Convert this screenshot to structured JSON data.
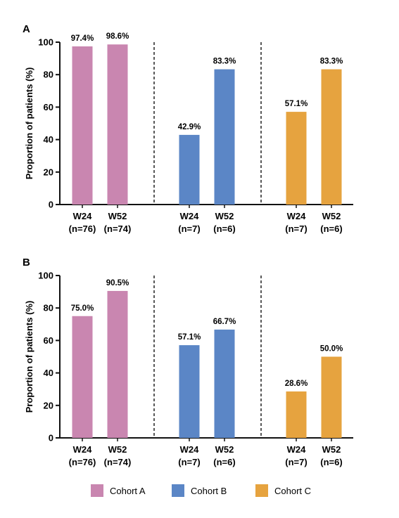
{
  "chart_data": [
    {
      "type": "bar",
      "panel": "A",
      "ylabel": "Proportion of patients (%)",
      "ylim": [
        0,
        100
      ],
      "yticks": [
        0,
        20,
        40,
        60,
        80,
        100
      ],
      "categories": [
        "W24",
        "W52",
        "W24",
        "W52",
        "W24",
        "W52"
      ],
      "category_n": [
        "(n=76)",
        "(n=74)",
        "(n=7)",
        "(n=6)",
        "(n=7)",
        "(n=6)"
      ],
      "groups": [
        "Cohort A",
        "Cohort A",
        "Cohort B",
        "Cohort B",
        "Cohort C",
        "Cohort C"
      ],
      "values": [
        97.4,
        98.6,
        42.9,
        83.3,
        57.1,
        83.3
      ],
      "value_labels": [
        "97.4%",
        "98.6%",
        "42.9%",
        "83.3%",
        "57.1%",
        "83.3%"
      ]
    },
    {
      "type": "bar",
      "panel": "B",
      "ylabel": "Proportion of patients (%)",
      "ylim": [
        0,
        100
      ],
      "yticks": [
        0,
        20,
        40,
        60,
        80,
        100
      ],
      "categories": [
        "W24",
        "W52",
        "W24",
        "W52",
        "W24",
        "W52"
      ],
      "category_n": [
        "(n=76)",
        "(n=74)",
        "(n=7)",
        "(n=6)",
        "(n=7)",
        "(n=6)"
      ],
      "groups": [
        "Cohort A",
        "Cohort A",
        "Cohort B",
        "Cohort B",
        "Cohort C",
        "Cohort C"
      ],
      "values": [
        75.0,
        90.5,
        57.1,
        66.7,
        28.6,
        50.0
      ],
      "value_labels": [
        "75.0%",
        "90.5%",
        "57.1%",
        "66.7%",
        "28.6%",
        "50.0%"
      ]
    }
  ],
  "legend": [
    {
      "label": "Cohort A",
      "color": "#c986b0"
    },
    {
      "label": "Cohort B",
      "color": "#5b86c6"
    },
    {
      "label": "Cohort C",
      "color": "#e6a33f"
    }
  ],
  "grid": false,
  "legend_position": "bottom"
}
